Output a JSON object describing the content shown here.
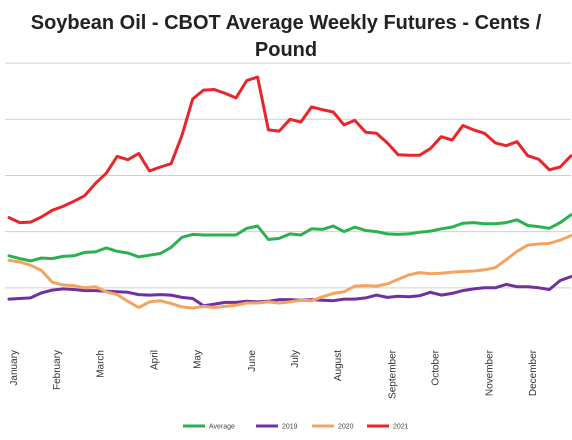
{
  "chart_data": {
    "type": "line",
    "title_line1": "Soybean Oil - CBOT Average Weekly Futures - Cents /",
    "title_line2": "Pound",
    "xlabel": "",
    "ylabel": "",
    "x_weeks": 53,
    "ylim": [
      20,
      75
    ],
    "y_gridlines": [
      30,
      40,
      50,
      60,
      70
    ],
    "y_tick_labels_shown": false,
    "grid": true,
    "legend_position": "bottom",
    "months": [
      {
        "label": "January",
        "week": 1
      },
      {
        "label": "February",
        "week": 5
      },
      {
        "label": "March",
        "week": 9
      },
      {
        "label": "April",
        "week": 14
      },
      {
        "label": "May",
        "week": 18
      },
      {
        "label": "June",
        "week": 23
      },
      {
        "label": "July",
        "week": 27
      },
      {
        "label": "August",
        "week": 31
      },
      {
        "label": "September",
        "week": 36
      },
      {
        "label": "October",
        "week": 40
      },
      {
        "label": "November",
        "week": 45
      },
      {
        "label": "December",
        "week": 49
      }
    ],
    "series": [
      {
        "name": "Average",
        "color": "#2ab24f",
        "values": [
          35.7,
          35.2,
          34.8,
          35.3,
          35.2,
          35.6,
          35.7,
          36.3,
          36.4,
          37.1,
          36.5,
          36.2,
          35.5,
          35.8,
          36.1,
          37.2,
          39.0,
          39.5,
          39.4,
          39.4,
          39.4,
          39.4,
          40.6,
          41.0,
          38.6,
          38.8,
          39.6,
          39.4,
          40.5,
          40.4,
          41.0,
          40.0,
          40.8,
          40.2,
          40.0,
          39.6,
          39.5,
          39.6,
          39.9,
          40.1,
          40.5,
          40.8,
          41.5,
          41.6,
          41.4,
          41.4,
          41.6,
          42.1,
          41.1,
          40.9,
          40.6,
          41.6,
          43.0
        ]
      },
      {
        "name": "2019",
        "color": "#7030a0",
        "values": [
          28.0,
          28.1,
          28.2,
          29.1,
          29.6,
          29.8,
          29.7,
          29.5,
          29.5,
          29.4,
          29.3,
          29.2,
          28.8,
          28.7,
          28.8,
          28.7,
          28.3,
          28.1,
          26.8,
          27.1,
          27.4,
          27.4,
          27.6,
          27.5,
          27.6,
          27.9,
          27.9,
          27.8,
          27.9,
          27.8,
          27.7,
          28.0,
          28.0,
          28.2,
          28.7,
          28.3,
          28.5,
          28.4,
          28.6,
          29.2,
          28.7,
          29.0,
          29.5,
          29.8,
          30.0,
          30.0,
          30.6,
          30.2,
          30.2,
          30.0,
          29.7,
          31.3,
          32.0
        ]
      },
      {
        "name": "2020",
        "color": "#f4a460",
        "values": [
          34.9,
          34.6,
          34.0,
          33.1,
          31.0,
          30.5,
          30.4,
          30.0,
          30.2,
          29.3,
          28.8,
          27.6,
          26.5,
          27.5,
          27.7,
          27.2,
          26.6,
          26.4,
          26.7,
          26.5,
          26.7,
          26.9,
          27.3,
          27.3,
          27.5,
          27.3,
          27.5,
          27.8,
          27.7,
          28.4,
          29.0,
          29.3,
          30.3,
          30.4,
          30.3,
          30.7,
          31.5,
          32.3,
          32.7,
          32.5,
          32.6,
          32.8,
          32.9,
          33.0,
          33.2,
          33.6,
          35.0,
          36.5,
          37.6,
          37.8,
          37.9,
          38.5,
          39.3
        ]
      },
      {
        "name": "2021",
        "color": "#e8262a",
        "values": [
          42.5,
          41.6,
          41.7,
          42.6,
          43.8,
          44.5,
          45.4,
          46.4,
          48.6,
          50.4,
          53.4,
          52.8,
          53.9,
          50.8,
          51.5,
          52.1,
          57.1,
          63.6,
          65.2,
          65.3,
          64.6,
          63.8,
          66.9,
          67.5,
          58.1,
          57.9,
          60.0,
          59.5,
          62.2,
          61.7,
          61.3,
          59.0,
          59.8,
          57.7,
          57.5,
          55.8,
          53.7,
          53.6,
          53.6,
          54.8,
          56.9,
          56.3,
          58.9,
          58.1,
          57.5,
          55.8,
          55.3,
          56.0,
          53.5,
          52.9,
          51.0,
          51.5,
          53.5
        ]
      }
    ]
  }
}
